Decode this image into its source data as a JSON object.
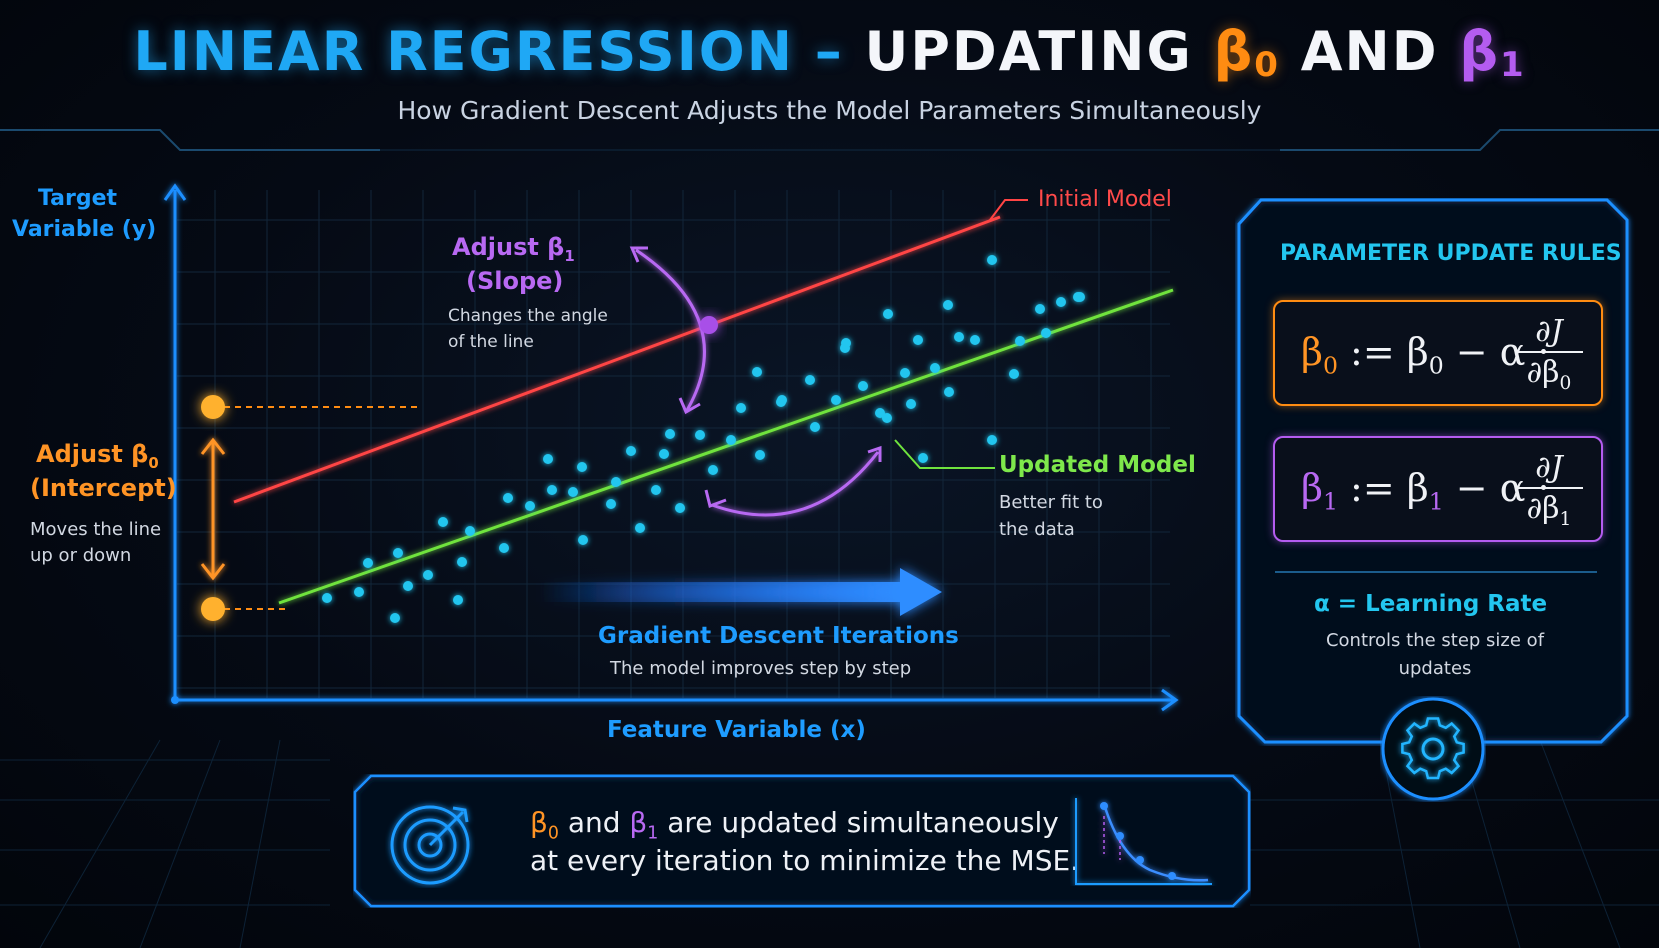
{
  "title": {
    "part1": "LINEAR REGRESSION – ",
    "part2": "UPDATING ",
    "beta0_symbol": "β",
    "beta0_sub": "0",
    "and": " AND ",
    "beta1_symbol": "β",
    "beta1_sub": "1"
  },
  "subtitle": "How Gradient Descent Adjusts the Model Parameters Simultaneously",
  "axes": {
    "y_label_line1": "Target",
    "y_label_line2": "Variable (y)",
    "x_label": "Feature Variable (x)"
  },
  "slope_annotation": {
    "title": "Adjust β",
    "title_sub": "1",
    "title2": "(Slope)",
    "desc_line1": "Changes the angle",
    "desc_line2": "of the line"
  },
  "intercept_annotation": {
    "title": "Adjust β",
    "title_sub": "0",
    "title2": "(Intercept)",
    "desc_line1": "Moves the line",
    "desc_line2": "up or down"
  },
  "initial_model_label": "Initial Model",
  "updated_model": {
    "title": "Updated Model",
    "desc_line1": "Better fit to",
    "desc_line2": "the data"
  },
  "iterations": {
    "title": "Gradient Descent Iterations",
    "desc": "The model improves step by step"
  },
  "rules_panel": {
    "title": "PARAMETER UPDATE RULES",
    "rule0_lhs": "β",
    "rule0_lhs_sub": "0",
    "rule0_mid": " := β",
    "rule0_mid_sub": "0",
    "rule0_rest": " − α ·",
    "rule0_num": "∂J",
    "rule0_den": "∂β",
    "rule0_den_sub": "0",
    "rule1_lhs": "β",
    "rule1_lhs_sub": "1",
    "rule1_mid": " := β",
    "rule1_mid_sub": "1",
    "rule1_rest": " − α ·",
    "rule1_num": "∂J",
    "rule1_den": "∂β",
    "rule1_den_sub": "1",
    "alpha_label": "α = Learning Rate",
    "alpha_desc_line1": "Controls the step size of",
    "alpha_desc_line2": "updates"
  },
  "footer": {
    "b0": "β",
    "b0_sub": "0",
    "and": " and ",
    "b1": "β",
    "b1_sub": "1",
    "line1_rest": " are updated simultaneously",
    "line2": "at every iteration to minimize the MSE."
  },
  "colors": {
    "blue": "#1e9cff",
    "cyan": "#23c6ef",
    "orange": "#ff9425",
    "purple": "#b869f2",
    "green": "#7ee84b",
    "red": "#ff4a4a"
  },
  "icons": [
    "gear-icon",
    "target-icon",
    "loss-curve-icon"
  ]
}
